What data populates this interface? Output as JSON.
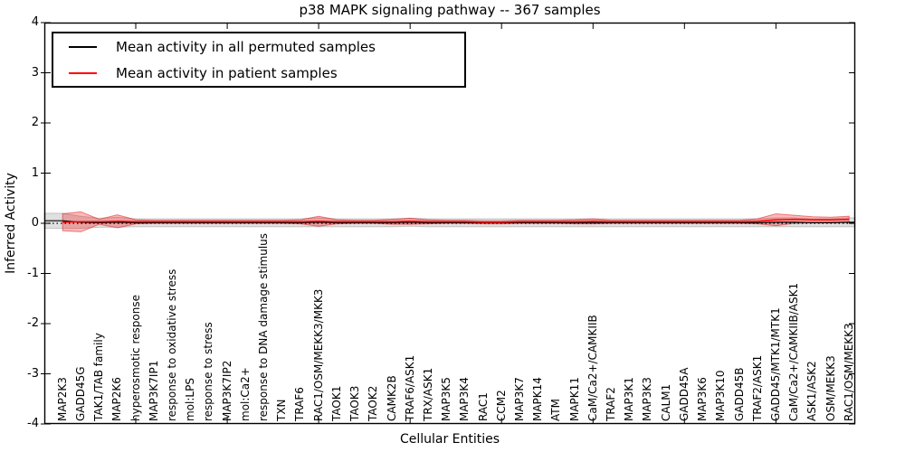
{
  "title": "p38 MAPK signaling pathway -- 367 samples",
  "legend": {
    "items": [
      {
        "label": "Mean activity in all permuted samples",
        "color": "#000000"
      },
      {
        "label": "Mean activity in patient samples",
        "color": "#ff0000"
      }
    ]
  },
  "axes": {
    "x_label": "Cellular Entities",
    "y_label": "Inferred Activity",
    "y_ticks": [
      "4",
      "3",
      "2",
      "1",
      "0",
      "-1",
      "-2",
      "-3",
      "-4"
    ]
  },
  "colors": {
    "permuted_line": "#000000",
    "patient_line": "#ff0000",
    "permuted_band_fill": "rgba(0,0,0,0.12)",
    "permuted_band_edge": "rgba(0,0,0,0.18)",
    "patient_band_fill": "rgba(255,0,0,0.28)",
    "patient_band_edge": "rgba(210,0,0,0.45)",
    "zero_line": "#000000",
    "axis": "#000000"
  },
  "chart_data": {
    "type": "line",
    "title": "p38 MAPK signaling pathway -- 367 samples",
    "xlabel": "Cellular Entities",
    "ylabel": "Inferred Activity",
    "ylim": [
      -4,
      4
    ],
    "grid": false,
    "legend_position": "upper left",
    "categories": [
      "MAP2K3",
      "GADD45G",
      "TAK1/TAB family",
      "MAP2K6",
      "hyperosmotic response",
      "MAP3K7IP1",
      "response to oxidative stress",
      "mol:LPS",
      "response to stress",
      "MAP3K7IP2",
      "mol:Ca2+",
      "response to DNA damage stimulus",
      "TXN",
      "TRAF6",
      "RAC1/OSM/MEKK3/MKK3",
      "TAOK1",
      "TAOK3",
      "TAOK2",
      "CAMK2B",
      "TRAF6/ASK1",
      "TRX/ASK1",
      "MAP3K5",
      "MAP3K4",
      "RAC1",
      "CCM2",
      "MAP3K7",
      "MAPK14",
      "ATM",
      "MAPK11",
      "CaM/Ca2+/CAMKIIB",
      "TRAF2",
      "MAP3K1",
      "MAP3K3",
      "CALM1",
      "GADD45A",
      "MAP3K6",
      "MAP3K10",
      "GADD45B",
      "TRAF2/ASK1",
      "GADD45/MTK1/MTK1",
      "CaM/Ca2+/CAMKIIB/ASK1",
      "ASK1/ASK2",
      "OSM/MEKK3",
      "RAC1/OSM/MEKK3"
    ],
    "series": [
      {
        "name": "Mean activity in all permuted samples",
        "color": "#000000",
        "values": [
          0.05,
          0.02,
          0.01,
          0.02,
          0.01,
          0.01,
          0.01,
          0.01,
          0.01,
          0.01,
          0.01,
          0.01,
          0.01,
          0.01,
          0.02,
          0.01,
          0.01,
          0.01,
          0.01,
          0.02,
          0.01,
          0.01,
          0.01,
          0.01,
          0.01,
          0.01,
          0.01,
          0.01,
          0.01,
          0.01,
          0.01,
          0.01,
          0.01,
          0.01,
          0.01,
          0.01,
          0.01,
          0.01,
          0.01,
          0.02,
          0.02,
          0.01,
          0.01,
          0.02
        ]
      },
      {
        "name": "Mean activity in patient samples",
        "color": "#ff0000",
        "values": [
          0.02,
          0.03,
          0.03,
          0.04,
          0.03,
          0.03,
          0.03,
          0.03,
          0.03,
          0.03,
          0.03,
          0.03,
          0.03,
          0.03,
          0.04,
          0.03,
          0.03,
          0.03,
          0.03,
          0.04,
          0.03,
          0.03,
          0.03,
          0.02,
          0.02,
          0.03,
          0.03,
          0.03,
          0.03,
          0.04,
          0.03,
          0.03,
          0.03,
          0.03,
          0.03,
          0.03,
          0.03,
          0.03,
          0.04,
          0.07,
          0.08,
          0.07,
          0.07,
          0.08
        ]
      }
    ],
    "bands": [
      {
        "name": "permuted std band",
        "center_series": 0,
        "fill": "rgba(0,0,0,0.12)",
        "half_widths": [
          0.15,
          0.12,
          0.09,
          0.1,
          0.08,
          0.08,
          0.08,
          0.08,
          0.08,
          0.08,
          0.08,
          0.08,
          0.08,
          0.08,
          0.09,
          0.08,
          0.08,
          0.08,
          0.08,
          0.08,
          0.08,
          0.08,
          0.08,
          0.08,
          0.08,
          0.08,
          0.08,
          0.08,
          0.08,
          0.08,
          0.08,
          0.08,
          0.08,
          0.08,
          0.08,
          0.08,
          0.08,
          0.08,
          0.08,
          0.09,
          0.09,
          0.08,
          0.08,
          0.09
        ]
      },
      {
        "name": "patient std band",
        "center_series": 1,
        "fill": "rgba(255,0,0,0.28)",
        "half_widths": [
          0.17,
          0.2,
          0.05,
          0.13,
          0.04,
          0.03,
          0.03,
          0.03,
          0.03,
          0.03,
          0.03,
          0.03,
          0.03,
          0.04,
          0.1,
          0.04,
          0.03,
          0.03,
          0.05,
          0.06,
          0.04,
          0.03,
          0.03,
          0.03,
          0.03,
          0.03,
          0.03,
          0.03,
          0.04,
          0.05,
          0.03,
          0.03,
          0.03,
          0.03,
          0.03,
          0.03,
          0.03,
          0.03,
          0.05,
          0.12,
          0.08,
          0.06,
          0.05,
          0.06
        ]
      }
    ],
    "zero_line": {
      "y": 0,
      "style": "dotted",
      "color": "#000000"
    },
    "x_major_tick_step": 5
  }
}
